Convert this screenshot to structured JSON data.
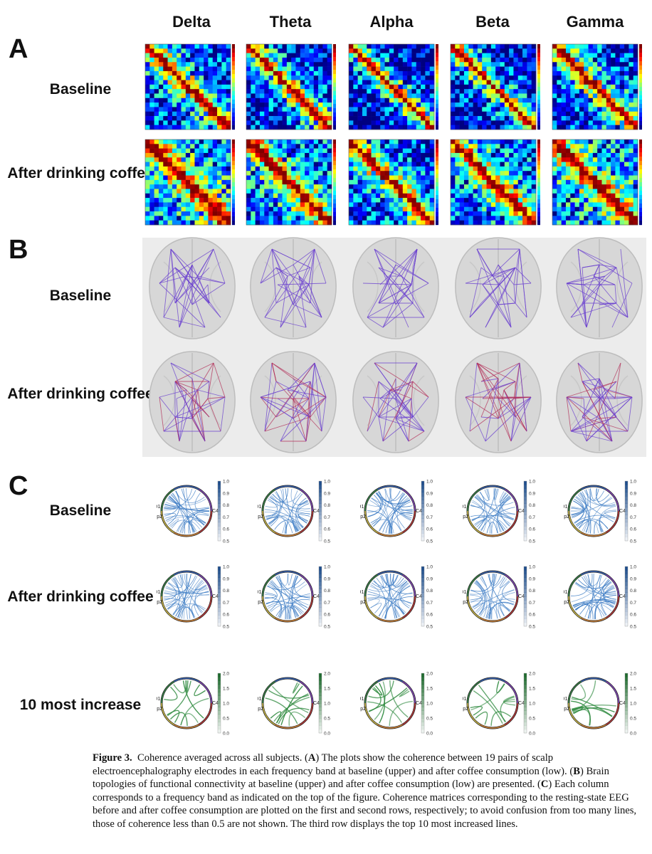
{
  "columns": [
    "Delta",
    "Theta",
    "Alpha",
    "Beta",
    "Gamma"
  ],
  "panels": {
    "A": {
      "letter": "A",
      "rows": [
        "Baseline",
        "After drinking coffee"
      ]
    },
    "B": {
      "letter": "B",
      "rows": [
        "Baseline",
        "After drinking coffee"
      ]
    },
    "C": {
      "letter": "C",
      "rows": [
        "Baseline",
        "After drinking coffee",
        "10 most increase"
      ]
    }
  },
  "colorbars": {
    "coherence_ticks": [
      "1.0",
      "0.9",
      "0.8",
      "0.7",
      "0.6",
      "0.5"
    ],
    "increase_ticks": [
      "2.0",
      "1.5",
      "1.0",
      "0.5",
      "0.0"
    ],
    "blue": "#1f4e8c",
    "green": "#1f6b2f"
  },
  "electrodes": [
    "O1",
    "Fp2",
    "C4"
  ],
  "caption": {
    "label": "Figure 3.",
    "title": "Coherence averaged across all subjects.",
    "p1_pre": "(",
    "A": "A",
    "p1_text": ") The plots show the coherence between 19 pairs of scalp electroencephalography electrodes in each frequency band at baseline (upper) and after coffee consumption (low). (",
    "B": "B",
    "p2_text": ") Brain topologies of functional connectivity at baseline (upper) and after coffee consumption (low) are presented. (",
    "C": "C",
    "p3_text": ") Each column corresponds to a frequency band as indicated on the top of the figure. Coherence matrices corresponding to the resting-state EEG before and after coffee consumption are plotted on the first and second rows, respectively; to avoid confusion from too many lines, those of coherence less than 0.5 are not shown. The third row displays the top 10 most increased lines."
  }
}
